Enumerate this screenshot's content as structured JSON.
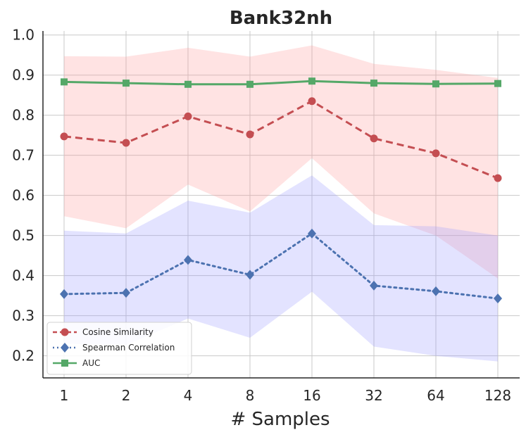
{
  "chart_data": {
    "type": "line",
    "title": "Bank32nh",
    "xlabel": "# Samples",
    "ylabel": "",
    "categories": [
      "1",
      "2",
      "4",
      "8",
      "16",
      "32",
      "64",
      "128"
    ],
    "ylim": [
      0.145,
      1.01
    ],
    "yticks": [
      0.2,
      0.3,
      0.4,
      0.5,
      0.6,
      0.7,
      0.8,
      0.9,
      1.0
    ],
    "ytick_labels": [
      "0.2",
      "0.3",
      "0.4",
      "0.5",
      "0.6",
      "0.7",
      "0.8",
      "0.9",
      "1.0"
    ],
    "grid": true,
    "legend_position": "lower-left",
    "series": [
      {
        "name": "Cosine Similarity",
        "color": "#c44e52",
        "band_color": "#ff9999",
        "line_style": "dashed",
        "marker": "circle",
        "values": [
          0.747,
          0.731,
          0.797,
          0.752,
          0.835,
          0.742,
          0.705,
          0.643
        ],
        "lower": [
          0.548,
          0.518,
          0.627,
          0.56,
          0.693,
          0.555,
          0.5,
          0.393
        ],
        "upper": [
          0.947,
          0.946,
          0.968,
          0.946,
          0.974,
          0.928,
          0.913,
          0.893
        ]
      },
      {
        "name": "Spearman Correlation",
        "color": "#4c72b0",
        "band_color": "#9999ff",
        "line_style": "dotted",
        "marker": "diamond",
        "values": [
          0.354,
          0.357,
          0.439,
          0.402,
          0.505,
          0.375,
          0.361,
          0.343
        ],
        "lower": [
          0.23,
          0.227,
          0.293,
          0.245,
          0.36,
          0.223,
          0.2,
          0.186
        ],
        "upper": [
          0.512,
          0.505,
          0.587,
          0.557,
          0.65,
          0.526,
          0.523,
          0.5
        ]
      },
      {
        "name": "AUC",
        "color": "#55a868",
        "line_style": "solid",
        "marker": "square",
        "values": [
          0.883,
          0.88,
          0.877,
          0.877,
          0.885,
          0.88,
          0.878,
          0.879
        ],
        "lower": [
          0.879,
          0.876,
          0.873,
          0.873,
          0.881,
          0.876,
          0.874,
          0.875
        ],
        "upper": [
          0.887,
          0.884,
          0.881,
          0.881,
          0.889,
          0.884,
          0.882,
          0.883
        ]
      }
    ]
  }
}
